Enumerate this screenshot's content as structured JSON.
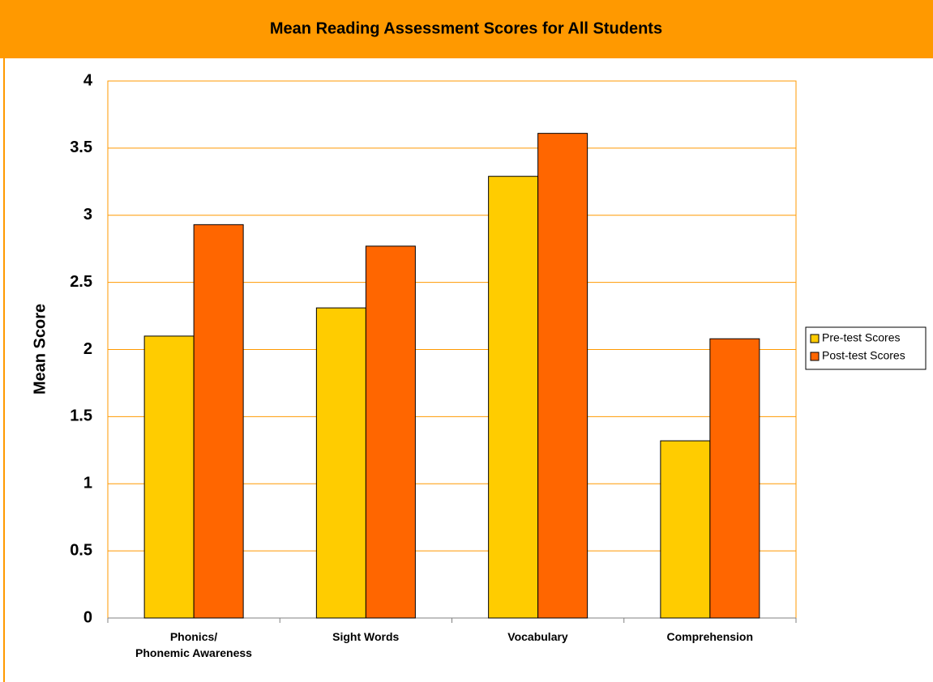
{
  "chart_data": {
    "type": "bar",
    "title": "Mean Reading Assessment Scores for All Students",
    "y_label": "Mean Score",
    "categories": [
      "Phonics/\nPhonemic Awareness",
      "Sight Words",
      "Vocabulary",
      "Comprehension"
    ],
    "series": [
      {
        "name": "Pre-test Scores",
        "color": "#ffcc00",
        "values": [
          2.1,
          2.31,
          3.29,
          1.32
        ]
      },
      {
        "name": "Post-test Scores",
        "color": "#ff6600",
        "values": [
          2.93,
          2.77,
          3.61,
          2.08
        ]
      }
    ],
    "ylim": [
      0,
      4
    ],
    "yticks": [
      0,
      0.5,
      1,
      1.5,
      2,
      2.5,
      3,
      3.5,
      4
    ],
    "grid": true,
    "legend": "right"
  }
}
